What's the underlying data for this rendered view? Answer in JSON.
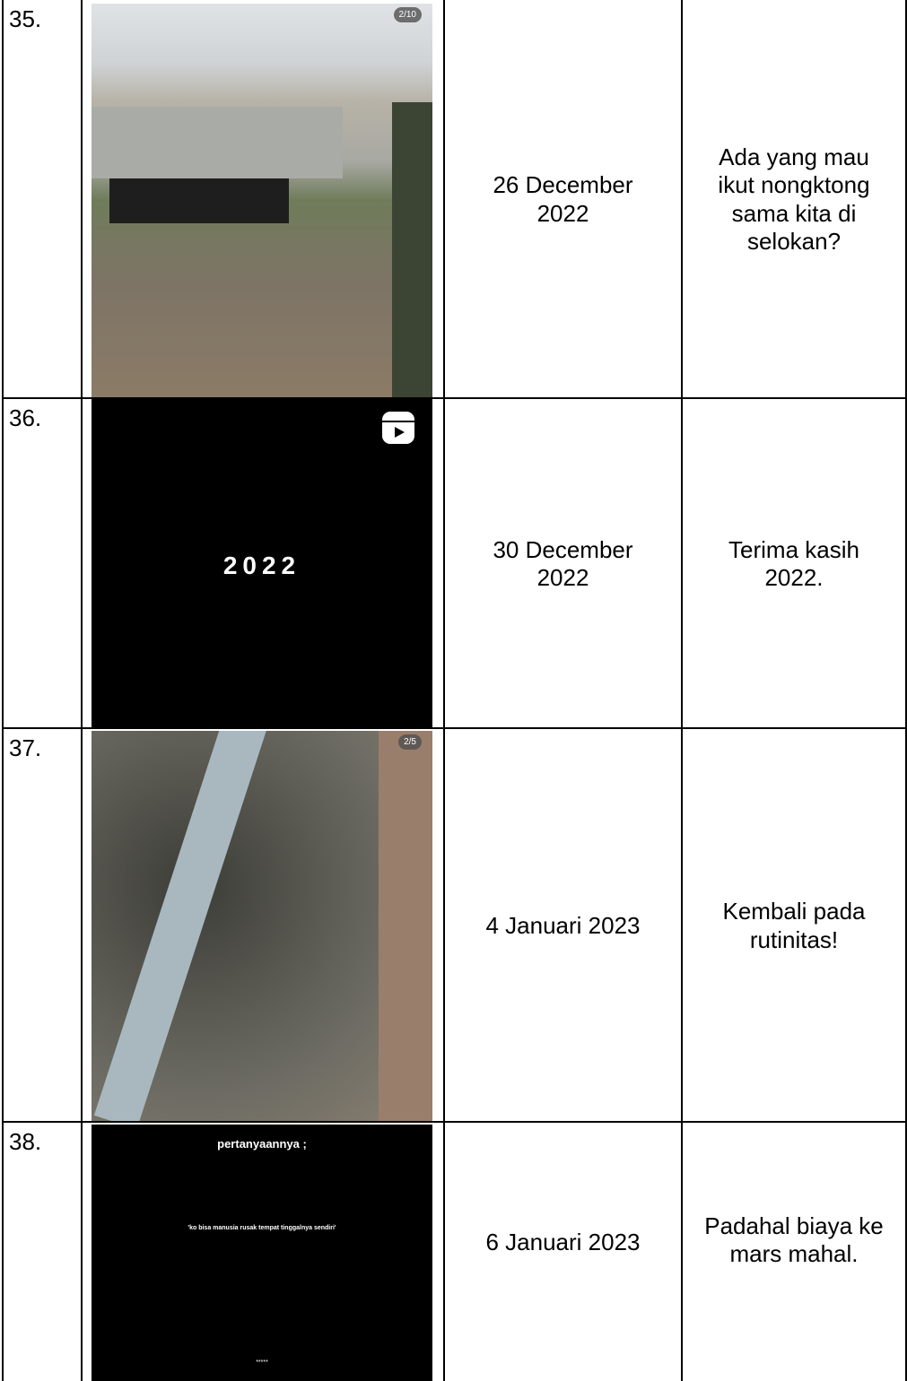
{
  "table": {
    "rows": [
      {
        "number": "35.",
        "image": {
          "overlay": [
            "2/10"
          ]
        },
        "date": "26 December 2022",
        "caption": "Ada yang mau ikut nongktong sama kita di selokan?"
      },
      {
        "number": "36.",
        "image": {
          "overlay": [
            "2022"
          ]
        },
        "date": "30 December 2022",
        "caption": "Terima kasih 2022."
      },
      {
        "number": "37.",
        "image": {
          "overlay": [
            "2/5"
          ]
        },
        "date": "4 Januari 2023",
        "caption": "Kembali pada rutinitas!"
      },
      {
        "number": "38.",
        "image": {
          "overlay": [
            "pertanyaannya ;",
            "'ko bisa manusia rusak tempat tinggalnya sendiri'",
            "*****"
          ]
        },
        "date": "6 Januari 2023",
        "caption": "Padahal biaya ke mars mahal."
      }
    ]
  }
}
